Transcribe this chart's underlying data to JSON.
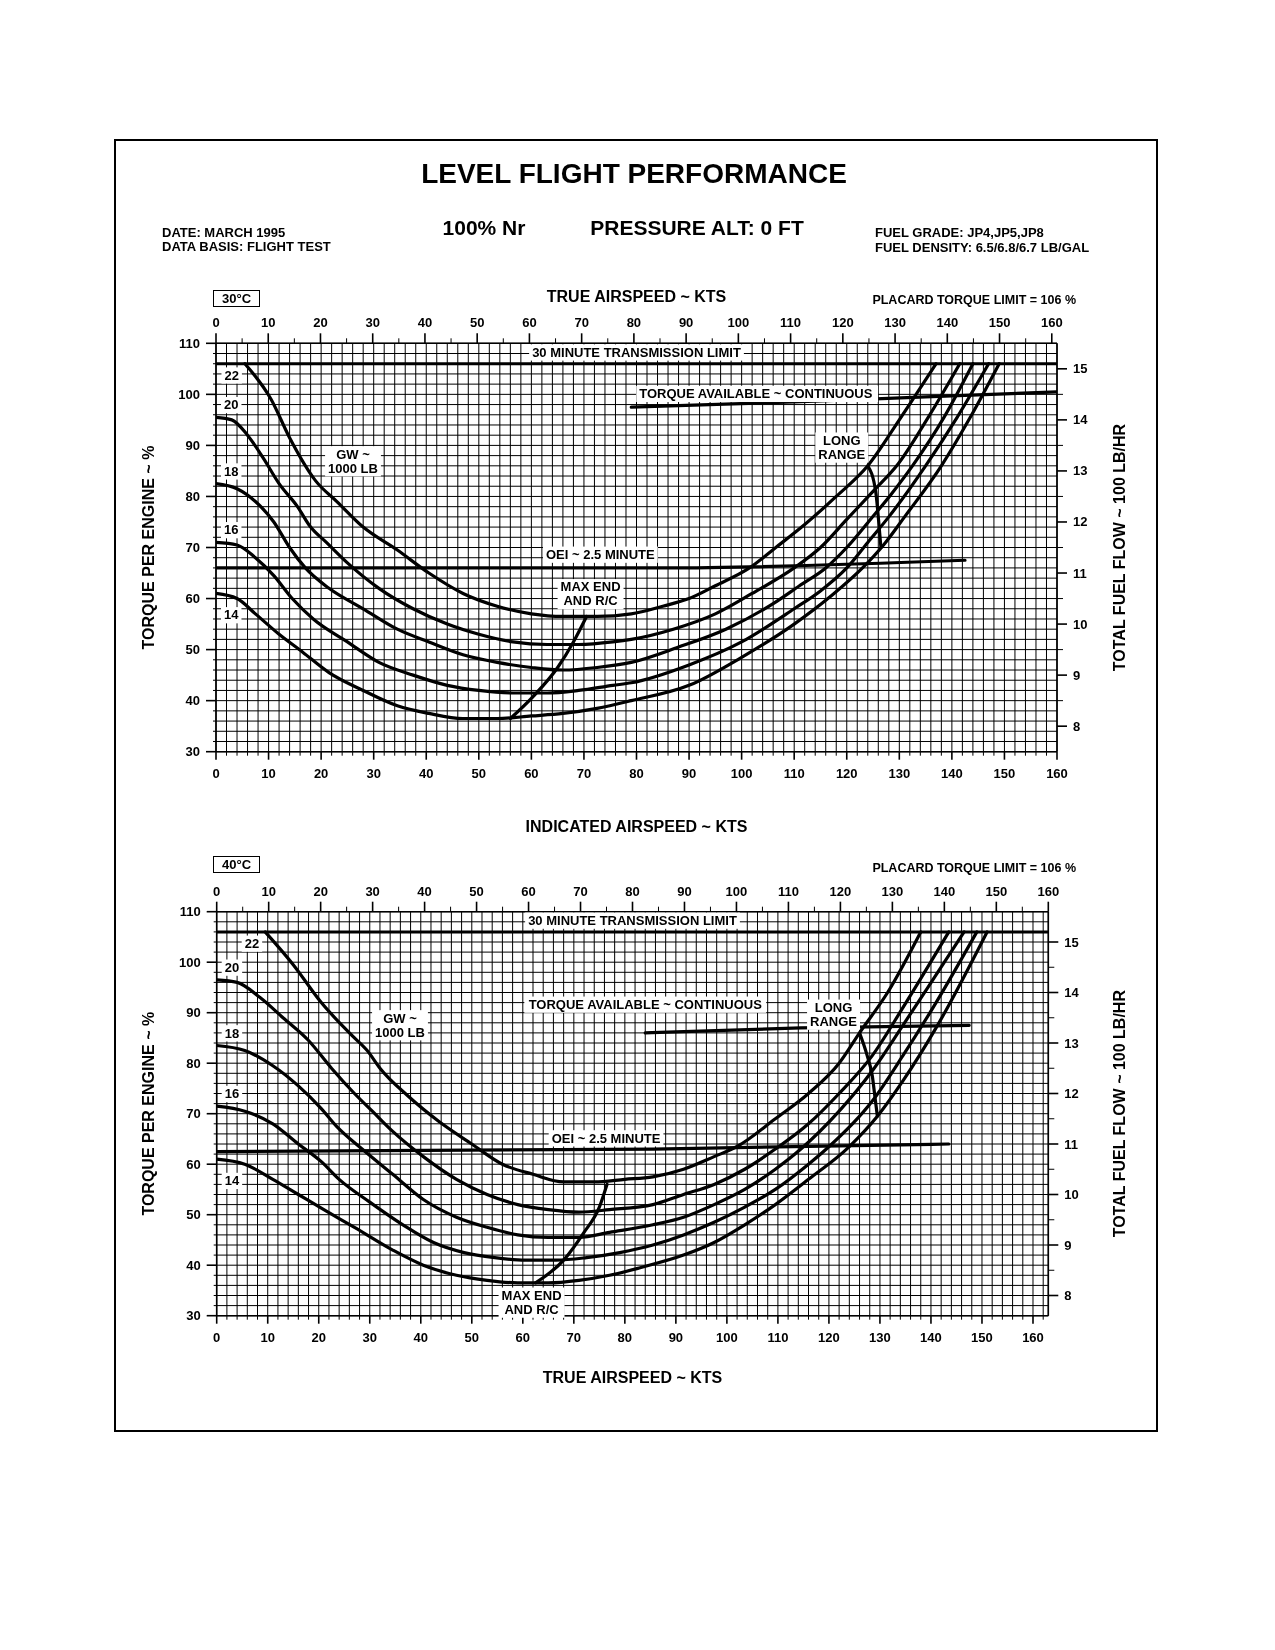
{
  "chart_data": [
    {
      "type": "line",
      "title": "LEVEL FLIGHT PERFORMANCE",
      "annotations": [
        "DATE: MARCH 1995",
        "DATA BASIS: FLIGHT TEST",
        "100% Nr",
        "PRESSURE ALT: 0 FT",
        "FUEL GRADE: JP4,JP5,JP8",
        "FUEL DENSITY: 6.5/6.8/6.7 LB/GAL",
        "30°C",
        "PLACARD TORQUE LIMIT = 106 %",
        "GW ~ 1000 LB"
      ],
      "xlabel": "INDICATED AIRSPEED ~ KTS",
      "x2label": "TRUE AIRSPEED ~ KTS",
      "ylabel": "TORQUE PER ENGINE ~ %",
      "y2label": "TOTAL FUEL FLOW ~ 100 LB/HR",
      "xlim": [
        0,
        160
      ],
      "xticks": [
        0,
        {
          "value": 2,
          "label": null
        },
        {
          "value": 4,
          "label": null
        },
        {
          "value": 6,
          "label": null
        },
        {
          "value": 8,
          "label": null
        },
        10,
        {
          "value": 12,
          "label": null
        },
        {
          "value": 14,
          "label": null
        },
        {
          "value": 16,
          "label": null
        },
        {
          "value": 18,
          "label": null
        },
        20,
        {
          "value": 22,
          "label": null
        },
        {
          "value": 24,
          "label": null
        },
        {
          "value": 26,
          "label": null
        },
        {
          "value": 28,
          "label": null
        },
        30,
        {
          "value": 32,
          "label": null
        },
        {
          "value": 34,
          "label": null
        },
        {
          "value": 36,
          "label": null
        },
        {
          "value": 38,
          "label": null
        },
        40,
        {
          "value": 42,
          "label": null
        },
        {
          "value": 44,
          "label": null
        },
        {
          "value": 46,
          "label": null
        },
        {
          "value": 48,
          "label": null
        },
        50,
        {
          "value": 52,
          "label": null
        },
        {
          "value": 54,
          "label": null
        },
        {
          "value": 56,
          "label": null
        },
        {
          "value": 58,
          "label": null
        },
        60,
        {
          "value": 62,
          "label": null
        },
        {
          "value": 64,
          "label": null
        },
        {
          "value": 66,
          "label": null
        },
        {
          "value": 68,
          "label": null
        },
        70,
        {
          "value": 72,
          "label": null
        },
        {
          "value": 74,
          "label": null
        },
        {
          "value": 76,
          "label": null
        },
        {
          "value": 78,
          "label": null
        },
        80,
        {
          "value": 82,
          "label": null
        },
        {
          "value": 84,
          "label": null
        },
        {
          "value": 86,
          "label": null
        },
        {
          "value": 88,
          "label": null
        },
        90,
        {
          "value": 92,
          "label": null
        },
        {
          "value": 94,
          "label": null
        },
        {
          "value": 96,
          "label": null
        },
        {
          "value": 98,
          "label": null
        },
        100,
        {
          "value": 102,
          "label": null
        },
        {
          "value": 104,
          "label": null
        },
        {
          "value": 106,
          "label": null
        },
        {
          "value": 108,
          "label": null
        },
        110,
        {
          "value": 112,
          "label": null
        },
        {
          "value": 114,
          "label": null
        },
        {
          "value": 116,
          "label": null
        },
        {
          "value": 118,
          "label": null
        },
        120,
        {
          "value": 122,
          "label": null
        },
        {
          "value": 124,
          "label": null
        },
        {
          "value": 126,
          "label": null
        },
        {
          "value": 128,
          "label": null
        },
        130,
        {
          "value": 132,
          "label": null
        },
        {
          "value": 134,
          "label": null
        },
        {
          "value": 136,
          "label": null
        },
        {
          "value": 138,
          "label": null
        },
        140,
        {
          "value": 142,
          "label": null
        },
        {
          "value": 144,
          "label": null
        },
        {
          "value": 146,
          "label": null
        },
        {
          "value": 148,
          "label": null
        },
        150,
        {
          "value": 152,
          "label": null
        },
        {
          "value": 154,
          "label": null
        },
        {
          "value": 156,
          "label": null
        },
        {
          "value": 158,
          "label": null
        },
        160
      ],
      "x2lim": [
        0,
        161
      ],
      "x2ticks": [
        0,
        {
          "value": 5,
          "label": null
        },
        10,
        {
          "value": 15,
          "label": null
        },
        20,
        {
          "value": 25,
          "label": null
        },
        30,
        {
          "value": 35,
          "label": null
        },
        40,
        {
          "value": 45,
          "label": null
        },
        50,
        {
          "value": 55,
          "label": null
        },
        60,
        {
          "value": 65,
          "label": null
        },
        70,
        {
          "value": 75,
          "label": null
        },
        80,
        {
          "value": 85,
          "label": null
        },
        90,
        {
          "value": 95,
          "label": null
        },
        100,
        {
          "value": 105,
          "label": null
        },
        110,
        {
          "value": 115,
          "label": null
        },
        120,
        {
          "value": 125,
          "label": null
        },
        130,
        {
          "value": 135,
          "label": null
        },
        140,
        {
          "value": 145,
          "label": null
        },
        150,
        {
          "value": 155,
          "label": null
        },
        160
      ],
      "ylim": [
        30,
        110
      ],
      "yticks": [
        30,
        {
          "value": 32,
          "label": null
        },
        {
          "value": 34,
          "label": null
        },
        {
          "value": 36,
          "label": null
        },
        {
          "value": 38,
          "label": null
        },
        40,
        {
          "value": 42,
          "label": null
        },
        {
          "value": 44,
          "label": null
        },
        {
          "value": 46,
          "label": null
        },
        {
          "value": 48,
          "label": null
        },
        50,
        {
          "value": 52,
          "label": null
        },
        {
          "value": 54,
          "label": null
        },
        {
          "value": 56,
          "label": null
        },
        {
          "value": 58,
          "label": null
        },
        60,
        {
          "value": 62,
          "label": null
        },
        {
          "value": 64,
          "label": null
        },
        {
          "value": 66,
          "label": null
        },
        {
          "value": 68,
          "label": null
        },
        70,
        {
          "value": 72,
          "label": null
        },
        {
          "value": 74,
          "label": null
        },
        {
          "value": 76,
          "label": null
        },
        {
          "value": 78,
          "label": null
        },
        80,
        {
          "value": 82,
          "label": null
        },
        {
          "value": 84,
          "label": null
        },
        {
          "value": 86,
          "label": null
        },
        {
          "value": 88,
          "label": null
        },
        90,
        {
          "value": 92,
          "label": null
        },
        {
          "value": 94,
          "label": null
        },
        {
          "value": 96,
          "label": null
        },
        {
          "value": 98,
          "label": null
        },
        100,
        {
          "value": 102,
          "label": null
        },
        {
          "value": 104,
          "label": null
        },
        {
          "value": 106,
          "label": null
        },
        {
          "value": 108,
          "label": null
        },
        110
      ],
      "y2lim": [
        7.5,
        15.5
      ],
      "y2ticks": [
        8,
        {
          "value": 8.5,
          "label": null
        },
        9,
        {
          "value": 9.5,
          "label": null
        },
        10,
        {
          "value": 10.5,
          "label": null
        },
        11,
        {
          "value": 11.5,
          "label": null
        },
        12,
        {
          "value": 12.5,
          "label": null
        },
        13,
        {
          "value": 13.5,
          "label": null
        },
        14,
        {
          "value": 14.5,
          "label": null
        },
        15
      ],
      "grid": true,
      "ref_lines": [
        {
          "axis": "y",
          "value": 106,
          "label": "30 MINUTE TRANSMISSION LIMIT",
          "color": "#000000"
        }
      ],
      "series": [
        {
          "name": "22",
          "color": "#000000",
          "x": [
            5.5,
            10.5,
            14,
            19,
            23,
            28,
            34.5,
            40.5,
            47,
            53.5,
            60,
            66,
            72.5,
            79,
            85,
            90,
            95,
            101.5,
            106.5,
            112,
            118,
            124,
            130,
            137
          ],
          "values": [
            106,
            99,
            91.5,
            83,
            79,
            74,
            69.5,
            65,
            61,
            58.5,
            57,
            56.5,
            56.5,
            57,
            58.5,
            60,
            62.5,
            66,
            70,
            74.5,
            80,
            86,
            95,
            106
          ]
        },
        {
          "name": "20",
          "color": "#000000",
          "x": [
            0,
            3,
            6,
            9,
            12,
            15.5,
            18,
            21,
            25,
            31,
            37.5,
            44,
            50,
            56.5,
            63,
            69,
            75.5,
            79,
            87,
            95,
            102,
            110,
            115,
            120,
            125,
            129.5,
            135.5,
            141.5
          ],
          "values": [
            95.5,
            95,
            92,
            87.5,
            82.5,
            78,
            74,
            71,
            67,
            62,
            58,
            55,
            53,
            51.5,
            51,
            51,
            51.5,
            52,
            54,
            57,
            61,
            66,
            70,
            75.5,
            81,
            86,
            95.5,
            106
          ]
        },
        {
          "name": "18",
          "color": "#000000",
          "x": [
            0,
            4,
            7.5,
            11,
            14,
            17,
            21.5,
            28,
            34.5,
            40.5,
            47,
            53.5,
            60,
            66,
            72.5,
            79,
            88,
            97,
            106,
            111,
            116,
            120,
            124.5,
            128.5,
            132.5,
            138.5,
            144
          ],
          "values": [
            82.5,
            81.5,
            79,
            75,
            70,
            66,
            62,
            58,
            54,
            51.5,
            49,
            47.5,
            46.5,
            46,
            46.5,
            47.5,
            50.5,
            54,
            59,
            62.5,
            66,
            70,
            75.5,
            80.5,
            86,
            95.5,
            106
          ]
        },
        {
          "name": "16",
          "color": "#000000",
          "x": [
            0,
            4,
            7.5,
            11,
            14.5,
            18.5,
            25,
            31,
            37.5,
            44,
            50,
            56.5,
            63,
            69,
            75.5,
            79,
            90,
            100,
            110,
            115,
            120,
            124,
            128,
            135,
            141,
            147
          ],
          "values": [
            71,
            70.5,
            68,
            64.5,
            60,
            56,
            51.5,
            47.5,
            45,
            43,
            42,
            41.5,
            41.5,
            42,
            43,
            43.5,
            47,
            51.5,
            58,
            61.5,
            66,
            71,
            76,
            86,
            95.5,
            106
          ]
        },
        {
          "name": "14",
          "color": "#000000",
          "x": [
            0,
            4,
            7.5,
            12,
            16.5,
            21.5,
            28,
            34.5,
            40.5,
            47,
            53.5,
            60,
            66,
            72.5,
            79,
            90,
            100,
            110,
            117,
            123,
            127,
            131,
            138,
            143.5,
            149
          ],
          "values": [
            61,
            60,
            57,
            53,
            49.5,
            45.5,
            42,
            39,
            37.5,
            36.5,
            36.5,
            37,
            37.5,
            38.5,
            40,
            43,
            48.5,
            55,
            60.5,
            66,
            70.5,
            76,
            86,
            95.5,
            106
          ]
        },
        {
          "name": "TORQUE AVAILABLE ~ CONTINUOUS",
          "color": "#000000",
          "x": [
            79,
            110,
            135,
            160
          ],
          "values": [
            97.5,
            98.5,
            99.5,
            100.5
          ]
        },
        {
          "name": "OEI ~ 2.5 MINUTE",
          "color": "#000000",
          "x": [
            0,
            85,
            142.5
          ],
          "values": [
            66,
            66,
            67.5
          ]
        },
        {
          "name": "MAX END AND R/C",
          "color": "#000000",
          "x": [
            56,
            60.5,
            65,
            68,
            70.5
          ],
          "values": [
            36.5,
            41,
            46.5,
            51.5,
            56.5
          ]
        },
        {
          "name": "LONG RANGE",
          "color": "#000000",
          "x": [
            124,
            125.5,
            126,
            126.5
          ],
          "values": [
            86,
            81,
            76,
            70
          ]
        }
      ]
    },
    {
      "type": "line",
      "annotations": [
        "40°C",
        "PLACARD TORQUE LIMIT = 106 %",
        "GW ~ 1000 LB"
      ],
      "xlabel": "TRUE AIRSPEED ~ KTS",
      "ylabel": "TORQUE PER ENGINE ~ %",
      "y2label": "TOTAL FUEL FLOW ~ 100 LB/HR",
      "xlim": [
        0,
        163
      ],
      "xticks": [
        0,
        {
          "value": 2,
          "label": null
        },
        {
          "value": 4,
          "label": null
        },
        {
          "value": 6,
          "label": null
        },
        {
          "value": 8,
          "label": null
        },
        10,
        {
          "value": 12,
          "label": null
        },
        {
          "value": 14,
          "label": null
        },
        {
          "value": 16,
          "label": null
        },
        {
          "value": 18,
          "label": null
        },
        20,
        {
          "value": 22,
          "label": null
        },
        {
          "value": 24,
          "label": null
        },
        {
          "value": 26,
          "label": null
        },
        {
          "value": 28,
          "label": null
        },
        30,
        {
          "value": 32,
          "label": null
        },
        {
          "value": 34,
          "label": null
        },
        {
          "value": 36,
          "label": null
        },
        {
          "value": 38,
          "label": null
        },
        40,
        {
          "value": 42,
          "label": null
        },
        {
          "value": 44,
          "label": null
        },
        {
          "value": 46,
          "label": null
        },
        {
          "value": 48,
          "label": null
        },
        50,
        {
          "value": 52,
          "label": null
        },
        {
          "value": 54,
          "label": null
        },
        {
          "value": 56,
          "label": null
        },
        {
          "value": 58,
          "label": null
        },
        60,
        {
          "value": 62,
          "label": null
        },
        {
          "value": 64,
          "label": null
        },
        {
          "value": 66,
          "label": null
        },
        {
          "value": 68,
          "label": null
        },
        70,
        {
          "value": 72,
          "label": null
        },
        {
          "value": 74,
          "label": null
        },
        {
          "value": 76,
          "label": null
        },
        {
          "value": 78,
          "label": null
        },
        80,
        {
          "value": 82,
          "label": null
        },
        {
          "value": 84,
          "label": null
        },
        {
          "value": 86,
          "label": null
        },
        {
          "value": 88,
          "label": null
        },
        90,
        {
          "value": 92,
          "label": null
        },
        {
          "value": 94,
          "label": null
        },
        {
          "value": 96,
          "label": null
        },
        {
          "value": 98,
          "label": null
        },
        100,
        {
          "value": 102,
          "label": null
        },
        {
          "value": 104,
          "label": null
        },
        {
          "value": 106,
          "label": null
        },
        {
          "value": 108,
          "label": null
        },
        110,
        {
          "value": 112,
          "label": null
        },
        {
          "value": 114,
          "label": null
        },
        {
          "value": 116,
          "label": null
        },
        {
          "value": 118,
          "label": null
        },
        120,
        {
          "value": 122,
          "label": null
        },
        {
          "value": 124,
          "label": null
        },
        {
          "value": 126,
          "label": null
        },
        {
          "value": 128,
          "label": null
        },
        130,
        {
          "value": 132,
          "label": null
        },
        {
          "value": 134,
          "label": null
        },
        {
          "value": 136,
          "label": null
        },
        {
          "value": 138,
          "label": null
        },
        140,
        {
          "value": 142,
          "label": null
        },
        {
          "value": 144,
          "label": null
        },
        {
          "value": 146,
          "label": null
        },
        {
          "value": 148,
          "label": null
        },
        150,
        {
          "value": 152,
          "label": null
        },
        {
          "value": 154,
          "label": null
        },
        {
          "value": 156,
          "label": null
        },
        {
          "value": 158,
          "label": null
        },
        160,
        {
          "value": 162,
          "label": null
        }
      ],
      "x2lim": [
        0,
        160
      ],
      "x2ticks": [
        0,
        {
          "value": 5,
          "label": null
        },
        10,
        {
          "value": 15,
          "label": null
        },
        20,
        {
          "value": 25,
          "label": null
        },
        30,
        {
          "value": 35,
          "label": null
        },
        40,
        {
          "value": 45,
          "label": null
        },
        50,
        {
          "value": 55,
          "label": null
        },
        60,
        {
          "value": 65,
          "label": null
        },
        70,
        {
          "value": 75,
          "label": null
        },
        80,
        {
          "value": 85,
          "label": null
        },
        90,
        {
          "value": 95,
          "label": null
        },
        100,
        {
          "value": 105,
          "label": null
        },
        110,
        {
          "value": 115,
          "label": null
        },
        120,
        {
          "value": 125,
          "label": null
        },
        130,
        {
          "value": 135,
          "label": null
        },
        140,
        {
          "value": 145,
          "label": null
        },
        150,
        {
          "value": 155,
          "label": null
        },
        160
      ],
      "ylim": [
        30,
        110
      ],
      "yticks": [
        30,
        {
          "value": 32,
          "label": null
        },
        {
          "value": 34,
          "label": null
        },
        {
          "value": 36,
          "label": null
        },
        {
          "value": 38,
          "label": null
        },
        40,
        {
          "value": 42,
          "label": null
        },
        {
          "value": 44,
          "label": null
        },
        {
          "value": 46,
          "label": null
        },
        {
          "value": 48,
          "label": null
        },
        50,
        {
          "value": 52,
          "label": null
        },
        {
          "value": 54,
          "label": null
        },
        {
          "value": 56,
          "label": null
        },
        {
          "value": 58,
          "label": null
        },
        60,
        {
          "value": 62,
          "label": null
        },
        {
          "value": 64,
          "label": null
        },
        {
          "value": 66,
          "label": null
        },
        {
          "value": 68,
          "label": null
        },
        70,
        {
          "value": 72,
          "label": null
        },
        {
          "value": 74,
          "label": null
        },
        {
          "value": 76,
          "label": null
        },
        {
          "value": 78,
          "label": null
        },
        80,
        {
          "value": 82,
          "label": null
        },
        {
          "value": 84,
          "label": null
        },
        {
          "value": 86,
          "label": null
        },
        {
          "value": 88,
          "label": null
        },
        90,
        {
          "value": 92,
          "label": null
        },
        {
          "value": 94,
          "label": null
        },
        {
          "value": 96,
          "label": null
        },
        {
          "value": 98,
          "label": null
        },
        100,
        {
          "value": 102,
          "label": null
        },
        {
          "value": 104,
          "label": null
        },
        {
          "value": 106,
          "label": null
        },
        {
          "value": 108,
          "label": null
        },
        110
      ],
      "y2lim": [
        7.6,
        15.6
      ],
      "y2ticks": [
        8,
        {
          "value": 8.5,
          "label": null
        },
        9,
        {
          "value": 9.5,
          "label": null
        },
        10,
        {
          "value": 10.5,
          "label": null
        },
        11,
        {
          "value": 11.5,
          "label": null
        },
        12,
        {
          "value": 12.5,
          "label": null
        },
        13,
        {
          "value": 13.5,
          "label": null
        },
        14,
        {
          "value": 14.5,
          "label": null
        },
        15
      ],
      "grid": true,
      "ref_lines": [
        {
          "axis": "y",
          "value": 106,
          "label": "30 MINUTE TRANSMISSION LIMIT",
          "color": "#000000"
        }
      ],
      "series": [
        {
          "name": "22",
          "color": "#000000",
          "x": [
            9.5,
            15,
            20.5,
            26.5,
            29.5,
            32,
            37.5,
            43.5,
            50,
            56,
            62,
            68,
            74,
            80,
            85.5,
            91.5,
            97.5,
            102,
            109.5,
            116,
            122,
            126,
            131.5,
            138
          ],
          "values": [
            106,
            99.5,
            92,
            85.5,
            82.5,
            79,
            73.5,
            68.5,
            64,
            60,
            58,
            56.5,
            56.5,
            57,
            57.5,
            59,
            61.5,
            63.5,
            69,
            74,
            80,
            86,
            94,
            106
          ]
        },
        {
          "name": "20",
          "color": "#000000",
          "x": [
            0,
            4,
            8.5,
            13,
            18,
            22.5,
            27,
            30.5,
            34.5,
            40.5,
            47,
            53,
            59,
            65,
            71,
            77,
            85.5,
            91.5,
            97.5,
            103.5,
            109.5,
            116,
            122,
            128.5,
            134.5,
            143.5
          ],
          "values": [
            96.5,
            96,
            93,
            89,
            84.5,
            79,
            74,
            70.5,
            66.5,
            61.5,
            57,
            54,
            52,
            51,
            50.5,
            51,
            52,
            54,
            56,
            59,
            63,
            68,
            74,
            81.5,
            91,
            106
          ]
        },
        {
          "name": "18",
          "color": "#000000",
          "x": [
            0,
            5.5,
            11,
            16,
            20.5,
            23.5,
            28.5,
            34.5,
            40.5,
            47,
            53,
            59,
            65,
            71,
            77,
            85.5,
            91.5,
            97.5,
            103.5,
            109.5,
            114.5,
            122,
            128.5,
            134.5,
            141,
            146.5
          ],
          "values": [
            83.5,
            82.5,
            79.5,
            75.5,
            71,
            67.5,
            63,
            58,
            53,
            49.5,
            47.5,
            46,
            45.5,
            45.5,
            46.5,
            48,
            49.5,
            52,
            55,
            59,
            63,
            70.5,
            78.5,
            87.5,
            97.5,
            106
          ]
        },
        {
          "name": "16",
          "color": "#000000",
          "x": [
            0,
            5.5,
            11,
            16,
            20.5,
            24,
            30,
            36.5,
            42.5,
            48.5,
            54.5,
            60.5,
            66.5,
            72.5,
            79,
            85.5,
            91.5,
            97.5,
            103.5,
            109.5,
            116,
            119.5,
            128.5,
            134.5,
            141,
            149
          ],
          "values": [
            71.5,
            70.5,
            68,
            64,
            60.5,
            57,
            52.5,
            48,
            44.5,
            42.5,
            41.5,
            41,
            41,
            41.5,
            42.5,
            44,
            46,
            48.5,
            51.5,
            55,
            60,
            63,
            72.5,
            81.5,
            92,
            106
          ]
        },
        {
          "name": "14",
          "color": "#000000",
          "x": [
            0,
            5.5,
            11,
            16,
            21,
            27,
            34.5,
            40.5,
            47,
            53,
            59,
            65,
            71,
            77,
            83,
            91.5,
            97.5,
            103.5,
            109.5,
            116,
            124,
            129.5,
            134.5,
            141,
            151
          ],
          "values": [
            61,
            60,
            57,
            54,
            51,
            47.5,
            43,
            40,
            38,
            37,
            36.5,
            36.5,
            37,
            38,
            39.5,
            42,
            44.5,
            48,
            52,
            57,
            63.5,
            69.5,
            76.5,
            87,
            106
          ]
        },
        {
          "name": "TORQUE AVAILABLE ~ CONTINUOUS",
          "color": "#000000",
          "x": [
            84,
            114.5,
            147.5
          ],
          "values": [
            86,
            87,
            87.5
          ]
        },
        {
          "name": "OEI ~ 2.5 MINUTE",
          "color": "#000000",
          "x": [
            0,
            85.5,
            143.5
          ],
          "values": [
            62.5,
            63,
            64
          ]
        },
        {
          "name": "MAX END AND R/C",
          "color": "#000000",
          "x": [
            62.5,
            68,
            72,
            75,
            76.5
          ],
          "values": [
            36.5,
            41,
            46.5,
            51.5,
            56
          ]
        },
        {
          "name": "LONG RANGE",
          "color": "#000000",
          "x": [
            126,
            127.5,
            128.5,
            129,
            129.5
          ],
          "values": [
            86,
            81.5,
            77.5,
            73.5,
            69.5
          ]
        }
      ]
    }
  ]
}
